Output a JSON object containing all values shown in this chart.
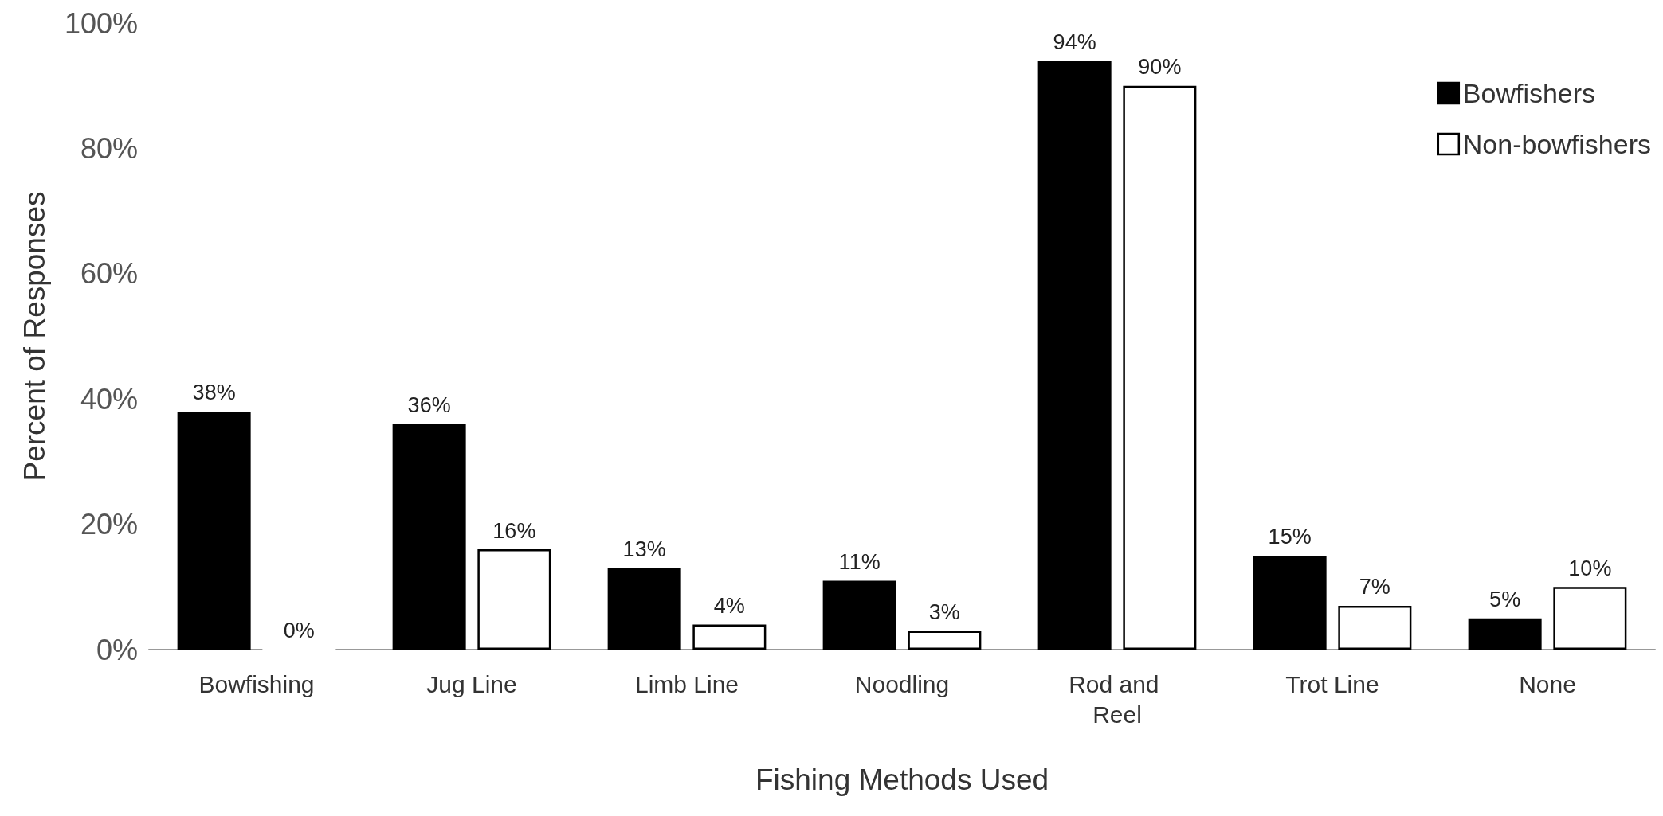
{
  "chart_data": {
    "type": "bar",
    "xlabel": "Fishing Methods Used",
    "ylabel": "Percent of Responses",
    "categories": [
      "Bowfishing",
      "Jug Line",
      "Limb Line",
      "Noodling",
      "Rod and Reel",
      "Trot Line",
      "None"
    ],
    "series": [
      {
        "name": "Bowfishers",
        "color": "#000000",
        "values": [
          38,
          36,
          13,
          11,
          94,
          15,
          5
        ],
        "value_labels": [
          "38%",
          "36%",
          "13%",
          "11%",
          "94%",
          "15%",
          "5%"
        ]
      },
      {
        "name": "Non-bowfishers",
        "color": "#ffffff",
        "values": [
          0,
          16,
          4,
          3,
          90,
          7,
          10
        ],
        "value_labels": [
          "0%",
          "16%",
          "4%",
          "3%",
          "90%",
          "7%",
          "10%"
        ]
      }
    ],
    "ylim": [
      0,
      100
    ],
    "yticks": [
      {
        "value": 0,
        "label": "0%"
      },
      {
        "value": 20,
        "label": "20%"
      },
      {
        "value": 40,
        "label": "40%"
      },
      {
        "value": 60,
        "label": "60%"
      },
      {
        "value": 80,
        "label": "80%"
      },
      {
        "value": 100,
        "label": "100%"
      }
    ],
    "grid": false,
    "legend": "top right"
  }
}
